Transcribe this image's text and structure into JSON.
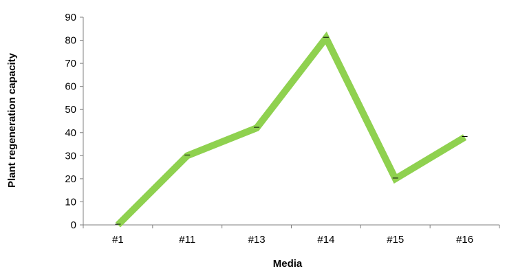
{
  "chart_data": {
    "type": "line",
    "title": "",
    "xlabel": "Media",
    "ylabel": "Plant regeneration capacity",
    "categories": [
      "#1",
      "#11",
      "#13",
      "#14",
      "#15",
      "#16"
    ],
    "series": [
      {
        "values": [
          0,
          30,
          42,
          81,
          20,
          38
        ]
      }
    ],
    "ylim": [
      0,
      90
    ],
    "yticks": [
      "0",
      "10",
      "20",
      "30",
      "40",
      "50",
      "60",
      "70",
      "80",
      "90"
    ],
    "grid": false,
    "legend": "none",
    "colors": {
      "line": "#8fd14f",
      "axis": "#7f7f7f",
      "errorbar": "#000000"
    }
  }
}
